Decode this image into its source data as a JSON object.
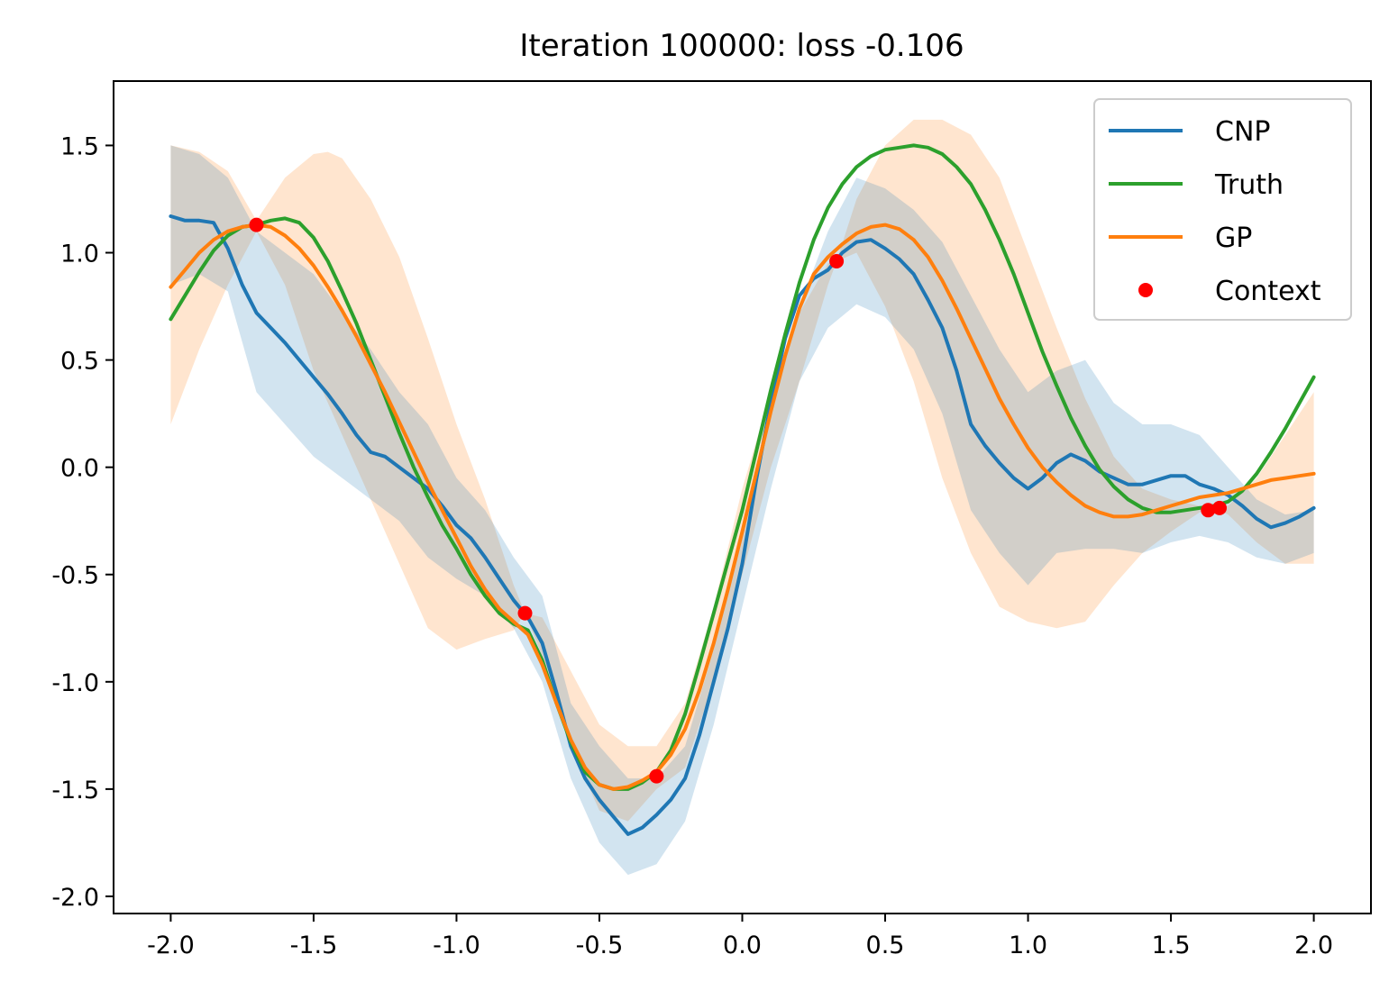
{
  "chart_data": {
    "type": "line",
    "title": "Iteration 100000: loss -0.106",
    "xlabel": "",
    "ylabel": "",
    "xlim": [
      -2.2,
      2.2
    ],
    "ylim": [
      -2.08,
      1.8
    ],
    "x_ticks": [
      -2.0,
      -1.5,
      -1.0,
      -0.5,
      0.0,
      0.5,
      1.0,
      1.5,
      2.0
    ],
    "x_tick_labels": [
      "-2.0",
      "-1.5",
      "-1.0",
      "-0.5",
      "0.0",
      "0.5",
      "1.0",
      "1.5",
      "2.0"
    ],
    "y_ticks": [
      1.5,
      1.0,
      0.5,
      0.0,
      -0.5,
      -1.0,
      -1.5,
      -2.0
    ],
    "y_tick_labels": [
      "1.5",
      "1.0",
      "0.5",
      "0.0",
      "-0.5",
      "-1.0",
      "-1.5",
      "-2.0"
    ],
    "grid": false,
    "legend_position": "top-right",
    "colors": {
      "cnp": "#1f77b4",
      "truth": "#2ca02c",
      "gp": "#ff7f0e",
      "context": "#ff0000",
      "cnp_band": "#1f77b4",
      "gp_band": "#ff7f0e"
    },
    "legend": [
      {
        "key": "cnp",
        "label": "CNP",
        "marker": "line"
      },
      {
        "key": "truth",
        "label": "Truth",
        "marker": "line"
      },
      {
        "key": "gp",
        "label": "GP",
        "marker": "line"
      },
      {
        "key": "context",
        "label": "Context",
        "marker": "dot"
      }
    ],
    "series": [
      {
        "key": "cnp",
        "name": "CNP",
        "x": [
          -2.0,
          -1.95,
          -1.9,
          -1.85,
          -1.8,
          -1.75,
          -1.7,
          -1.65,
          -1.6,
          -1.55,
          -1.5,
          -1.45,
          -1.4,
          -1.35,
          -1.3,
          -1.25,
          -1.2,
          -1.15,
          -1.1,
          -1.05,
          -1.0,
          -0.95,
          -0.9,
          -0.85,
          -0.8,
          -0.75,
          -0.7,
          -0.65,
          -0.6,
          -0.55,
          -0.5,
          -0.45,
          -0.4,
          -0.35,
          -0.3,
          -0.25,
          -0.2,
          -0.15,
          -0.1,
          -0.05,
          0.0,
          0.05,
          0.1,
          0.15,
          0.2,
          0.25,
          0.3,
          0.35,
          0.4,
          0.45,
          0.5,
          0.55,
          0.6,
          0.65,
          0.7,
          0.75,
          0.8,
          0.85,
          0.9,
          0.95,
          1.0,
          1.05,
          1.1,
          1.15,
          1.2,
          1.25,
          1.3,
          1.35,
          1.4,
          1.45,
          1.5,
          1.55,
          1.6,
          1.65,
          1.7,
          1.75,
          1.8,
          1.85,
          1.9,
          1.95,
          2.0
        ],
        "y": [
          1.17,
          1.15,
          1.15,
          1.14,
          1.02,
          0.85,
          0.72,
          0.65,
          0.58,
          0.5,
          0.42,
          0.34,
          0.25,
          0.15,
          0.07,
          0.05,
          0.0,
          -0.05,
          -0.1,
          -0.18,
          -0.27,
          -0.33,
          -0.42,
          -0.52,
          -0.62,
          -0.7,
          -0.82,
          -1.05,
          -1.3,
          -1.45,
          -1.55,
          -1.63,
          -1.71,
          -1.68,
          -1.62,
          -1.55,
          -1.45,
          -1.25,
          -1.0,
          -0.75,
          -0.45,
          -0.05,
          0.3,
          0.6,
          0.8,
          0.88,
          0.92,
          1.0,
          1.05,
          1.06,
          1.02,
          0.97,
          0.9,
          0.78,
          0.65,
          0.45,
          0.2,
          0.1,
          0.02,
          -0.05,
          -0.1,
          -0.05,
          0.02,
          0.06,
          0.03,
          -0.02,
          -0.05,
          -0.08,
          -0.08,
          -0.06,
          -0.04,
          -0.04,
          -0.08,
          -0.1,
          -0.13,
          -0.18,
          -0.24,
          -0.28,
          -0.26,
          -0.23,
          -0.19
        ]
      },
      {
        "key": "truth",
        "name": "Truth",
        "x": [
          -2.0,
          -1.95,
          -1.9,
          -1.85,
          -1.8,
          -1.75,
          -1.7,
          -1.65,
          -1.6,
          -1.55,
          -1.5,
          -1.45,
          -1.4,
          -1.35,
          -1.3,
          -1.25,
          -1.2,
          -1.15,
          -1.1,
          -1.05,
          -1.0,
          -0.95,
          -0.9,
          -0.85,
          -0.8,
          -0.75,
          -0.7,
          -0.65,
          -0.6,
          -0.55,
          -0.5,
          -0.45,
          -0.4,
          -0.35,
          -0.3,
          -0.25,
          -0.2,
          -0.15,
          -0.1,
          -0.05,
          0.0,
          0.05,
          0.1,
          0.15,
          0.2,
          0.25,
          0.3,
          0.35,
          0.4,
          0.45,
          0.5,
          0.55,
          0.6,
          0.65,
          0.7,
          0.75,
          0.8,
          0.85,
          0.9,
          0.95,
          1.0,
          1.05,
          1.1,
          1.15,
          1.2,
          1.25,
          1.3,
          1.35,
          1.4,
          1.45,
          1.5,
          1.55,
          1.6,
          1.65,
          1.7,
          1.75,
          1.8,
          1.85,
          1.9,
          1.95,
          2.0
        ],
        "y": [
          0.69,
          0.8,
          0.91,
          1.01,
          1.08,
          1.12,
          1.13,
          1.15,
          1.16,
          1.14,
          1.07,
          0.96,
          0.82,
          0.67,
          0.5,
          0.33,
          0.16,
          0.0,
          -0.14,
          -0.27,
          -0.38,
          -0.5,
          -0.6,
          -0.68,
          -0.73,
          -0.76,
          -0.9,
          -1.1,
          -1.28,
          -1.42,
          -1.48,
          -1.5,
          -1.5,
          -1.47,
          -1.42,
          -1.32,
          -1.15,
          -0.92,
          -0.68,
          -0.44,
          -0.2,
          0.08,
          0.36,
          0.62,
          0.86,
          1.06,
          1.21,
          1.32,
          1.4,
          1.45,
          1.48,
          1.49,
          1.5,
          1.49,
          1.46,
          1.4,
          1.32,
          1.2,
          1.06,
          0.9,
          0.72,
          0.54,
          0.38,
          0.23,
          0.1,
          -0.01,
          -0.09,
          -0.15,
          -0.19,
          -0.21,
          -0.21,
          -0.2,
          -0.19,
          -0.18,
          -0.16,
          -0.11,
          -0.03,
          0.07,
          0.18,
          0.3,
          0.42
        ]
      },
      {
        "key": "gp",
        "name": "GP",
        "x": [
          -2.0,
          -1.95,
          -1.9,
          -1.85,
          -1.8,
          -1.75,
          -1.7,
          -1.65,
          -1.6,
          -1.55,
          -1.5,
          -1.45,
          -1.4,
          -1.35,
          -1.3,
          -1.25,
          -1.2,
          -1.15,
          -1.1,
          -1.05,
          -1.0,
          -0.95,
          -0.9,
          -0.85,
          -0.8,
          -0.75,
          -0.7,
          -0.65,
          -0.6,
          -0.55,
          -0.5,
          -0.45,
          -0.4,
          -0.35,
          -0.3,
          -0.25,
          -0.2,
          -0.15,
          -0.1,
          -0.05,
          0.0,
          0.05,
          0.1,
          0.15,
          0.2,
          0.25,
          0.3,
          0.35,
          0.4,
          0.45,
          0.5,
          0.55,
          0.6,
          0.65,
          0.7,
          0.75,
          0.8,
          0.85,
          0.9,
          0.95,
          1.0,
          1.05,
          1.1,
          1.15,
          1.2,
          1.25,
          1.3,
          1.35,
          1.4,
          1.45,
          1.5,
          1.55,
          1.6,
          1.65,
          1.7,
          1.75,
          1.8,
          1.85,
          1.9,
          1.95,
          2.0
        ],
        "y": [
          0.84,
          0.92,
          1.0,
          1.06,
          1.1,
          1.12,
          1.13,
          1.12,
          1.08,
          1.02,
          0.94,
          0.84,
          0.73,
          0.61,
          0.48,
          0.35,
          0.21,
          0.07,
          -0.07,
          -0.2,
          -0.33,
          -0.46,
          -0.57,
          -0.66,
          -0.72,
          -0.78,
          -0.92,
          -1.1,
          -1.27,
          -1.4,
          -1.48,
          -1.5,
          -1.49,
          -1.46,
          -1.42,
          -1.34,
          -1.22,
          -1.04,
          -0.82,
          -0.57,
          -0.3,
          -0.02,
          0.26,
          0.52,
          0.74,
          0.9,
          0.98,
          1.04,
          1.09,
          1.12,
          1.13,
          1.11,
          1.06,
          0.98,
          0.87,
          0.74,
          0.6,
          0.46,
          0.32,
          0.2,
          0.09,
          0.0,
          -0.07,
          -0.13,
          -0.18,
          -0.21,
          -0.23,
          -0.23,
          -0.22,
          -0.2,
          -0.18,
          -0.16,
          -0.14,
          -0.13,
          -0.12,
          -0.1,
          -0.08,
          -0.06,
          -0.05,
          -0.04,
          -0.03
        ]
      }
    ],
    "bands": [
      {
        "key": "gp_band",
        "x": [
          -2.0,
          -1.9,
          -1.8,
          -1.7,
          -1.6,
          -1.5,
          -1.45,
          -1.4,
          -1.3,
          -1.2,
          -1.1,
          -1.0,
          -0.9,
          -0.8,
          -0.76,
          -0.7,
          -0.6,
          -0.5,
          -0.4,
          -0.3,
          -0.2,
          -0.1,
          0.0,
          0.1,
          0.2,
          0.3,
          0.33,
          0.4,
          0.5,
          0.6,
          0.7,
          0.8,
          0.9,
          1.0,
          1.1,
          1.2,
          1.3,
          1.4,
          1.5,
          1.6,
          1.65,
          1.7,
          1.8,
          1.9,
          2.0
        ],
        "upper": [
          1.5,
          1.47,
          1.38,
          1.15,
          1.35,
          1.46,
          1.47,
          1.44,
          1.25,
          0.98,
          0.6,
          0.2,
          -0.15,
          -0.55,
          -0.68,
          -0.7,
          -0.95,
          -1.2,
          -1.3,
          -1.3,
          -1.1,
          -0.65,
          -0.1,
          0.35,
          0.72,
          0.95,
          0.96,
          1.25,
          1.5,
          1.62,
          1.62,
          1.55,
          1.35,
          1.0,
          0.65,
          0.32,
          0.05,
          -0.1,
          -0.15,
          -0.18,
          -0.19,
          -0.18,
          -0.05,
          0.15,
          0.35
        ],
        "lower": [
          0.2,
          0.55,
          0.85,
          1.1,
          0.85,
          0.45,
          0.3,
          0.15,
          -0.15,
          -0.45,
          -0.75,
          -0.85,
          -0.8,
          -0.76,
          -0.68,
          -0.88,
          -1.3,
          -1.6,
          -1.65,
          -1.5,
          -1.4,
          -1.0,
          -0.5,
          0.0,
          0.4,
          0.85,
          0.96,
          1.0,
          0.75,
          0.4,
          -0.05,
          -0.4,
          -0.65,
          -0.72,
          -0.75,
          -0.72,
          -0.55,
          -0.4,
          -0.3,
          -0.21,
          -0.19,
          -0.22,
          -0.35,
          -0.45,
          -0.45
        ]
      },
      {
        "key": "cnp_band",
        "x": [
          -2.0,
          -1.9,
          -1.8,
          -1.7,
          -1.6,
          -1.5,
          -1.4,
          -1.3,
          -1.2,
          -1.1,
          -1.0,
          -0.9,
          -0.8,
          -0.7,
          -0.6,
          -0.5,
          -0.4,
          -0.3,
          -0.2,
          -0.1,
          0.0,
          0.1,
          0.2,
          0.3,
          0.4,
          0.5,
          0.6,
          0.7,
          0.8,
          0.9,
          1.0,
          1.1,
          1.2,
          1.3,
          1.4,
          1.5,
          1.6,
          1.7,
          1.8,
          1.9,
          2.0
        ],
        "upper": [
          1.5,
          1.46,
          1.35,
          1.1,
          1.0,
          0.9,
          0.72,
          0.55,
          0.35,
          0.2,
          -0.05,
          -0.2,
          -0.42,
          -0.6,
          -1.1,
          -1.3,
          -1.45,
          -1.45,
          -1.3,
          -0.85,
          -0.3,
          0.3,
          0.75,
          1.1,
          1.35,
          1.3,
          1.2,
          1.05,
          0.8,
          0.55,
          0.35,
          0.45,
          0.5,
          0.3,
          0.2,
          0.2,
          0.15,
          0.0,
          -0.15,
          -0.22,
          -0.2
        ],
        "lower": [
          0.85,
          0.9,
          0.82,
          0.35,
          0.2,
          0.05,
          -0.05,
          -0.15,
          -0.25,
          -0.42,
          -0.52,
          -0.6,
          -0.75,
          -1.0,
          -1.45,
          -1.75,
          -1.9,
          -1.85,
          -1.65,
          -1.2,
          -0.65,
          -0.1,
          0.4,
          0.65,
          0.76,
          0.7,
          0.55,
          0.25,
          -0.2,
          -0.4,
          -0.55,
          -0.4,
          -0.38,
          -0.38,
          -0.4,
          -0.35,
          -0.32,
          -0.35,
          -0.42,
          -0.45,
          -0.4
        ]
      }
    ],
    "context_points": {
      "name": "Context",
      "x": [
        -1.7,
        -0.76,
        -0.3,
        0.33,
        1.63,
        1.67
      ],
      "y": [
        1.13,
        -0.68,
        -1.44,
        0.96,
        -0.2,
        -0.19
      ]
    }
  }
}
